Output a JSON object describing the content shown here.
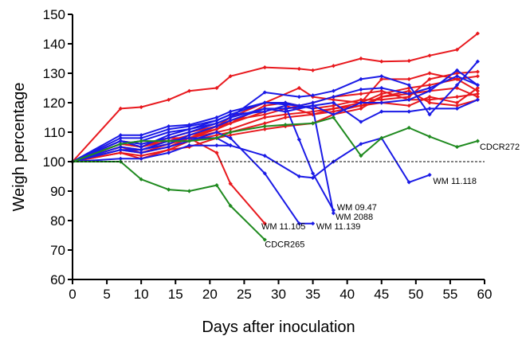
{
  "chart_data": {
    "type": "line",
    "xlabel": "Days after inoculation",
    "ylabel": "Weigh percentage",
    "xlim": [
      0,
      60
    ],
    "ylim": [
      60,
      150
    ],
    "xticks": [
      0,
      5,
      10,
      15,
      20,
      25,
      30,
      35,
      40,
      45,
      50,
      55,
      60
    ],
    "yticks": [
      60,
      70,
      80,
      90,
      100,
      110,
      120,
      130,
      140,
      150
    ],
    "reference_line": {
      "y": 100,
      "style": "dashed"
    },
    "grid": false,
    "legend": "none",
    "series": [
      {
        "color": "#e8191e",
        "points": [
          [
            0,
            100
          ],
          [
            7,
            118
          ],
          [
            10,
            118.5
          ],
          [
            14,
            121
          ],
          [
            17,
            124
          ],
          [
            21,
            125
          ],
          [
            23,
            129
          ],
          [
            28,
            132
          ],
          [
            33,
            131.5
          ],
          [
            35,
            131
          ],
          [
            38,
            132.5
          ],
          [
            42,
            135
          ],
          [
            45,
            134
          ],
          [
            49,
            134.2
          ],
          [
            52,
            136
          ],
          [
            56,
            138
          ],
          [
            59,
            143.5
          ]
        ]
      },
      {
        "color": "#e8191e",
        "points": [
          [
            0,
            100
          ],
          [
            7,
            107
          ],
          [
            10,
            106
          ],
          [
            14,
            108
          ],
          [
            17,
            110
          ],
          [
            21,
            112
          ],
          [
            23,
            113
          ],
          [
            28,
            119
          ],
          [
            31,
            120
          ],
          [
            35,
            118
          ],
          [
            38,
            119
          ],
          [
            42,
            121
          ],
          [
            45,
            121
          ],
          [
            49,
            122
          ],
          [
            52,
            128
          ],
          [
            56,
            130
          ],
          [
            59,
            130.5
          ]
        ]
      },
      {
        "color": "#e8191e",
        "points": [
          [
            0,
            100
          ],
          [
            7,
            105
          ],
          [
            10,
            103
          ],
          [
            14,
            106
          ],
          [
            17,
            108
          ],
          [
            21,
            111
          ],
          [
            23,
            113
          ],
          [
            28,
            117
          ],
          [
            31,
            119
          ],
          [
            35,
            116
          ],
          [
            38,
            118
          ],
          [
            42,
            120
          ],
          [
            45,
            123
          ],
          [
            49,
            125
          ],
          [
            52,
            126
          ],
          [
            56,
            128
          ],
          [
            59,
            129
          ]
        ]
      },
      {
        "color": "#e8191e",
        "points": [
          [
            0,
            100
          ],
          [
            7,
            104
          ],
          [
            10,
            103
          ],
          [
            14,
            105
          ],
          [
            17,
            108
          ],
          [
            21,
            110
          ],
          [
            23,
            111
          ],
          [
            28,
            115
          ],
          [
            31,
            116
          ],
          [
            35,
            117
          ],
          [
            38,
            118
          ],
          [
            42,
            119
          ],
          [
            45,
            120
          ],
          [
            49,
            119
          ],
          [
            52,
            122
          ],
          [
            56,
            120
          ],
          [
            59,
            125
          ]
        ]
      },
      {
        "color": "#e8191e",
        "points": [
          [
            0,
            100
          ],
          [
            7,
            106
          ],
          [
            10,
            105
          ],
          [
            14,
            107
          ],
          [
            17,
            109
          ],
          [
            21,
            111
          ],
          [
            23,
            114
          ],
          [
            28,
            116
          ],
          [
            31,
            118
          ],
          [
            35,
            120
          ],
          [
            38,
            122
          ],
          [
            42,
            123
          ],
          [
            45,
            124
          ],
          [
            49,
            121
          ],
          [
            52,
            121
          ],
          [
            56,
            122
          ],
          [
            59,
            123
          ]
        ]
      },
      {
        "color": "#e8191e",
        "points": [
          [
            0,
            100
          ],
          [
            7,
            103
          ],
          [
            10,
            102
          ],
          [
            14,
            104
          ],
          [
            17,
            107
          ],
          [
            21,
            109
          ],
          [
            23,
            110
          ],
          [
            28,
            113
          ],
          [
            31,
            115
          ],
          [
            35,
            116
          ],
          [
            38,
            117
          ],
          [
            42,
            119
          ],
          [
            45,
            122
          ],
          [
            49,
            124
          ],
          [
            52,
            120
          ],
          [
            56,
            119
          ],
          [
            59,
            121
          ]
        ]
      },
      {
        "color": "#e8191e",
        "points": [
          [
            0,
            100
          ],
          [
            7,
            105
          ],
          [
            10,
            104
          ],
          [
            14,
            106
          ],
          [
            17,
            108
          ],
          [
            21,
            112
          ],
          [
            23,
            115
          ],
          [
            28,
            120
          ],
          [
            33,
            125
          ],
          [
            35,
            122
          ],
          [
            38,
            121
          ],
          [
            42,
            120
          ],
          [
            45,
            128
          ],
          [
            49,
            128
          ],
          [
            52,
            130
          ],
          [
            56,
            128
          ],
          [
            59,
            124
          ]
        ]
      },
      {
        "color": "#e8191e",
        "points": [
          [
            0,
            100
          ],
          [
            7,
            103
          ],
          [
            10,
            101
          ],
          [
            14,
            104
          ],
          [
            17,
            105
          ],
          [
            21,
            108
          ],
          [
            23,
            109
          ],
          [
            28,
            111
          ],
          [
            31,
            112
          ],
          [
            35,
            113
          ],
          [
            38,
            116
          ],
          [
            42,
            118
          ],
          [
            45,
            122
          ],
          [
            49,
            123
          ],
          [
            52,
            124
          ],
          [
            56,
            125
          ],
          [
            59,
            122
          ]
        ]
      },
      {
        "color": "#e8191e",
        "points": [
          [
            0,
            100
          ],
          [
            7,
            106
          ],
          [
            10,
            105
          ],
          [
            14,
            108
          ],
          [
            17,
            108
          ],
          [
            21,
            103
          ],
          [
            23,
            92.5
          ],
          [
            28,
            79
          ]
        ]
      },
      {
        "color": "#1a1ae6",
        "points": [
          [
            0,
            100
          ],
          [
            7,
            107
          ],
          [
            10,
            106
          ],
          [
            14,
            108
          ],
          [
            17,
            110
          ],
          [
            21,
            113
          ],
          [
            23,
            115
          ],
          [
            28,
            123.5
          ],
          [
            33,
            122
          ],
          [
            35,
            122.5
          ],
          [
            38,
            124
          ],
          [
            42,
            128
          ],
          [
            45,
            129
          ],
          [
            49,
            126
          ],
          [
            52,
            116
          ],
          [
            56,
            126
          ],
          [
            59,
            134
          ]
        ]
      },
      {
        "color": "#1a1ae6",
        "points": [
          [
            0,
            100
          ],
          [
            7,
            109
          ],
          [
            10,
            109
          ],
          [
            14,
            112
          ],
          [
            17,
            112.5
          ],
          [
            21,
            115
          ],
          [
            23,
            117
          ],
          [
            28,
            120
          ],
          [
            33,
            119
          ],
          [
            35,
            120
          ],
          [
            38,
            122
          ],
          [
            42,
            124.5
          ],
          [
            45,
            125
          ],
          [
            49,
            123
          ],
          [
            52,
            125
          ],
          [
            56,
            129
          ],
          [
            59,
            126
          ]
        ]
      },
      {
        "color": "#1a1ae6",
        "points": [
          [
            0,
            100
          ],
          [
            7,
            104
          ],
          [
            10,
            104
          ],
          [
            14,
            106
          ],
          [
            17,
            109
          ],
          [
            21,
            112
          ],
          [
            23,
            114
          ],
          [
            28,
            118
          ],
          [
            31,
            118
          ],
          [
            35,
            119
          ],
          [
            38,
            120
          ],
          [
            42,
            113.5
          ],
          [
            45,
            117
          ],
          [
            49,
            117
          ],
          [
            52,
            118
          ],
          [
            56,
            118
          ],
          [
            59,
            121
          ]
        ]
      },
      {
        "color": "#1a1ae6",
        "points": [
          [
            0,
            100
          ],
          [
            7,
            106
          ],
          [
            10,
            107
          ],
          [
            14,
            110
          ],
          [
            17,
            111
          ],
          [
            21,
            113
          ],
          [
            23,
            115
          ],
          [
            28,
            118
          ],
          [
            31,
            117
          ],
          [
            35,
            119
          ],
          [
            38,
            116
          ],
          [
            42,
            120
          ],
          [
            45,
            120
          ],
          [
            49,
            121
          ],
          [
            52,
            124
          ],
          [
            56,
            131
          ],
          [
            59,
            126
          ]
        ]
      },
      {
        "color": "#1a1ae6",
        "points": [
          [
            0,
            100
          ],
          [
            7,
            108
          ],
          [
            10,
            108
          ],
          [
            14,
            111
          ],
          [
            17,
            112
          ],
          [
            21,
            114
          ],
          [
            23,
            116
          ],
          [
            28,
            117
          ],
          [
            31,
            119
          ],
          [
            33,
            107.5
          ],
          [
            35,
            96
          ],
          [
            38,
            83.5
          ]
        ]
      },
      {
        "color": "#1a1ae6",
        "points": [
          [
            0,
            100
          ],
          [
            7,
            107
          ],
          [
            10,
            105
          ],
          [
            14,
            109
          ],
          [
            17,
            111
          ],
          [
            21,
            114
          ],
          [
            23,
            116
          ],
          [
            28,
            120
          ],
          [
            31,
            120
          ],
          [
            35,
            118
          ],
          [
            38,
            82.5
          ]
        ]
      },
      {
        "color": "#1a1ae6",
        "points": [
          [
            0,
            100
          ],
          [
            7,
            105
          ],
          [
            10,
            104
          ],
          [
            14,
            107
          ],
          [
            17,
            108
          ],
          [
            21,
            108
          ],
          [
            23,
            105.5
          ],
          [
            28,
            102
          ],
          [
            33,
            95
          ],
          [
            35,
            94.5
          ],
          [
            38,
            100
          ],
          [
            42,
            106
          ],
          [
            45,
            108
          ],
          [
            49,
            93
          ],
          [
            52,
            95.5
          ]
        ]
      },
      {
        "color": "#1a1ae6",
        "points": [
          [
            0,
            100
          ],
          [
            7,
            104
          ],
          [
            10,
            103
          ],
          [
            14,
            105
          ],
          [
            17,
            107
          ],
          [
            21,
            110
          ],
          [
            23,
            108
          ],
          [
            28,
            96
          ],
          [
            33,
            79
          ],
          [
            35,
            79
          ]
        ]
      },
      {
        "color": "#1a1ae6",
        "points": [
          [
            0,
            100
          ],
          [
            7,
            101
          ],
          [
            10,
            101
          ],
          [
            14,
            103
          ],
          [
            17,
            105.5
          ],
          [
            21,
            105.5
          ],
          [
            23,
            105.5
          ]
        ]
      },
      {
        "color": "#1f8a1f",
        "points": [
          [
            0,
            100
          ],
          [
            7,
            106
          ],
          [
            10,
            107
          ],
          [
            14,
            107
          ],
          [
            17,
            107
          ],
          [
            21,
            108
          ],
          [
            23,
            110
          ],
          [
            28,
            112
          ],
          [
            31,
            112.5
          ],
          [
            35,
            113
          ],
          [
            38,
            115
          ],
          [
            42,
            102
          ],
          [
            45,
            108
          ],
          [
            49,
            111.5
          ],
          [
            52,
            108.5
          ],
          [
            56,
            105
          ],
          [
            59,
            107
          ]
        ]
      },
      {
        "color": "#1f8a1f",
        "points": [
          [
            0,
            100
          ],
          [
            7,
            100
          ],
          [
            10,
            94
          ],
          [
            14,
            90.5
          ],
          [
            17,
            90
          ],
          [
            21,
            92
          ],
          [
            23,
            85
          ],
          [
            28,
            73.5
          ]
        ]
      }
    ],
    "annotations": [
      {
        "text": "CDCR272",
        "x": 59.3,
        "y": 104
      },
      {
        "text": "WM 11.118",
        "x": 52.5,
        "y": 92.5
      },
      {
        "text": "WM 09.47",
        "x": 38.5,
        "y": 83.5
      },
      {
        "text": "WM 2088",
        "x": 38.3,
        "y": 80.3
      },
      {
        "text": "WM 11.139",
        "x": 35.5,
        "y": 77
      },
      {
        "text": "WM 11.105",
        "x": 27.5,
        "y": 77
      },
      {
        "text": "CDCR265",
        "x": 28,
        "y": 71
      }
    ]
  }
}
